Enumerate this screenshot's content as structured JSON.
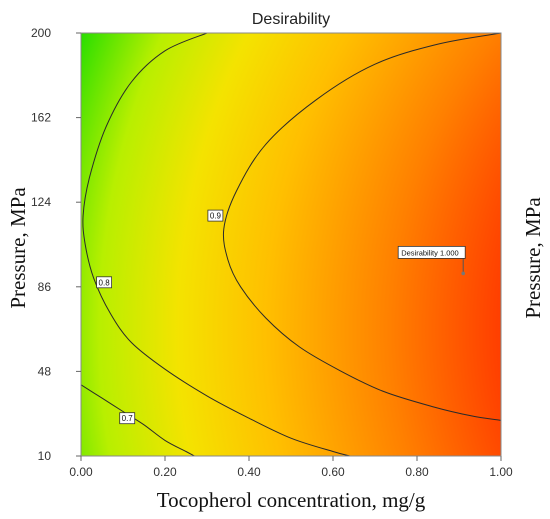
{
  "chart_data": {
    "type": "heatmap",
    "subtype": "contour",
    "title": "Desirability",
    "xlabel": "Tocopherol concentration, mg/g",
    "ylabel": "Pressure, MPa",
    "ylabel_right": "Pressure, MPa",
    "xlim": [
      0,
      1
    ],
    "ylim": [
      10,
      200
    ],
    "x_ticks": [
      "0.00",
      "0.20",
      "0.40",
      "0.60",
      "0.80",
      "1.00"
    ],
    "y_ticks": [
      "10",
      "48",
      "86",
      "124",
      "162",
      "200"
    ],
    "colorscale": {
      "low": "#00dd00",
      "mid": "#ffcc00",
      "high": "#ff0000"
    },
    "contours": [
      {
        "level": 0.7,
        "label": "0.7",
        "points": [
          [
            0.0,
            42
          ],
          [
            0.05,
            36
          ],
          [
            0.1,
            30
          ],
          [
            0.15,
            24
          ],
          [
            0.2,
            17
          ],
          [
            0.25,
            12
          ],
          [
            0.27,
            10
          ]
        ]
      },
      {
        "level": 0.8,
        "label": "0.8",
        "points": [
          [
            0.3,
            200
          ],
          [
            0.2,
            192
          ],
          [
            0.12,
            178
          ],
          [
            0.06,
            158
          ],
          [
            0.02,
            135
          ],
          [
            0.005,
            118
          ],
          [
            0.01,
            105
          ],
          [
            0.03,
            90
          ],
          [
            0.07,
            74
          ],
          [
            0.12,
            61
          ],
          [
            0.2,
            49
          ],
          [
            0.3,
            37
          ],
          [
            0.4,
            27
          ],
          [
            0.5,
            18
          ],
          [
            0.6,
            12
          ],
          [
            0.64,
            10
          ]
        ]
      },
      {
        "level": 0.9,
        "label": "0.9",
        "points": [
          [
            1.0,
            200
          ],
          [
            0.85,
            195
          ],
          [
            0.7,
            186
          ],
          [
            0.56,
            170
          ],
          [
            0.44,
            150
          ],
          [
            0.37,
            129
          ],
          [
            0.34,
            112
          ],
          [
            0.35,
            98
          ],
          [
            0.38,
            86
          ],
          [
            0.44,
            72
          ],
          [
            0.52,
            59
          ],
          [
            0.62,
            48
          ],
          [
            0.72,
            39
          ],
          [
            0.84,
            32
          ],
          [
            0.93,
            28
          ],
          [
            1.0,
            26
          ]
        ]
      }
    ],
    "contour_label_positions": [
      {
        "label": "0.7",
        "x": 0.11,
        "y": 27
      },
      {
        "label": "0.8",
        "x": 0.055,
        "y": 88
      },
      {
        "label": "0.9",
        "x": 0.32,
        "y": 118
      }
    ],
    "optimum": {
      "label": "Desirability",
      "value": "1.000",
      "x": 0.91,
      "y": 92
    }
  }
}
